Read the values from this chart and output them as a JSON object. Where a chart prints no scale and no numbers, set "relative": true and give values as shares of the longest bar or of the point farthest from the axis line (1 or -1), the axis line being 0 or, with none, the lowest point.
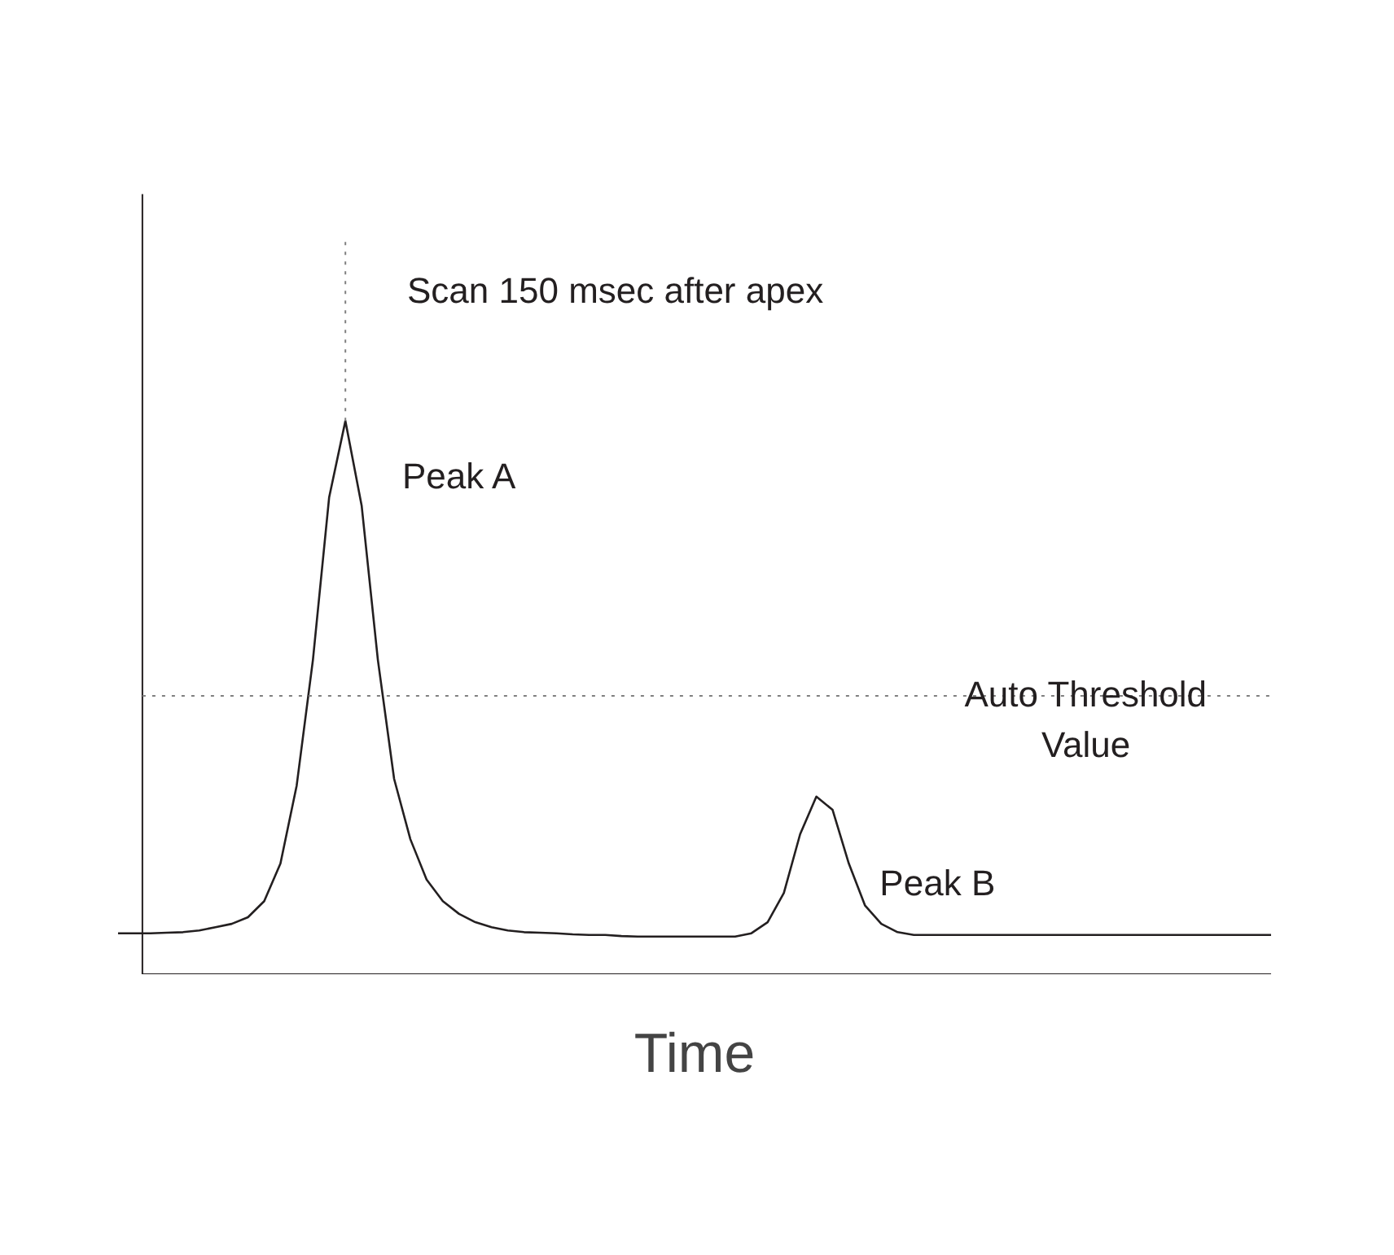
{
  "chart_data": {
    "type": "line",
    "relative": true,
    "xlabel": "Time",
    "categories": [
      null,
      null,
      null,
      null,
      null,
      null,
      null,
      null,
      null,
      null,
      null,
      null,
      null,
      null,
      null,
      null,
      null,
      null,
      null,
      null,
      null,
      null,
      null,
      null,
      null,
      null,
      null,
      null,
      null,
      null,
      null,
      null,
      null,
      null,
      null,
      null,
      null,
      null,
      null,
      null,
      null,
      null,
      null,
      null,
      null,
      null,
      null,
      null,
      null,
      null,
      null,
      null,
      null,
      null,
      null,
      null,
      null,
      null,
      null,
      null,
      null,
      null,
      null,
      null,
      null,
      null,
      null,
      null,
      null,
      null,
      null,
      null
    ],
    "series": [
      {
        "color": "#231f20",
        "values": [
          0.074,
          0.074,
          0.074,
          0.075,
          0.076,
          0.079,
          0.085,
          0.091,
          0.103,
          0.132,
          0.2,
          0.341,
          0.568,
          0.862,
          1,
          0.847,
          0.568,
          0.353,
          0.244,
          0.171,
          0.132,
          0.109,
          0.094,
          0.085,
          0.079,
          0.076,
          0.075,
          0.074,
          0.072,
          0.071,
          0.071,
          0.069,
          0.068,
          0.068,
          0.068,
          0.068,
          0.068,
          0.068,
          0.068,
          0.074,
          0.094,
          0.147,
          0.253,
          0.321,
          0.297,
          0.2,
          0.124,
          0.091,
          0.076,
          0.071,
          0.071,
          0.071,
          0.071,
          0.071,
          0.071,
          0.071,
          0.071,
          0.071,
          0.071,
          0.071,
          0.071,
          0.071,
          0.071,
          0.071,
          0.071,
          0.071,
          0.071,
          0.071,
          0.071,
          0.071,
          0.071,
          0.071
        ]
      }
    ],
    "ref_lines": [
      {
        "axis": "y",
        "value": 0.503,
        "label": "Auto Threshold Value",
        "line_style": "dotted",
        "color": "#808080"
      }
    ],
    "annotations": [
      "Scan 150 msec after apex",
      "Peak A",
      "Peak B"
    ],
    "line_style": "solid"
  }
}
